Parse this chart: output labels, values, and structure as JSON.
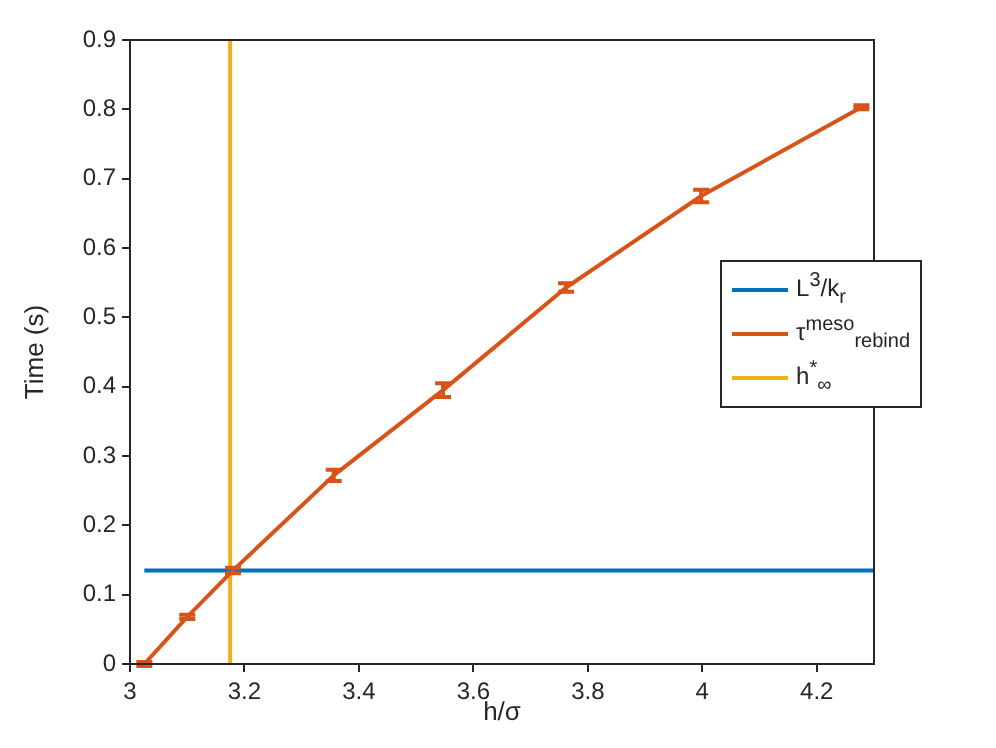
{
  "chart_data": {
    "type": "line",
    "xlabel": "h/σ",
    "ylabel": "Time (s)",
    "xlim": [
      3,
      4.3
    ],
    "xticks": [
      3,
      3.2,
      3.4,
      3.6,
      3.8,
      4,
      4.2
    ],
    "ylim": [
      0,
      0.9
    ],
    "yticks": [
      0,
      0.1,
      0.2,
      0.3,
      0.4,
      0.5,
      0.6,
      0.7,
      0.8,
      0.9
    ],
    "grid": false,
    "legend": "right",
    "marker": "none",
    "series": [
      {
        "name": "L$^{3}$/k$_{r}$",
        "color": "#0072bd",
        "x": [
          3.025,
          4.3
        ],
        "values": [
          0.135,
          0.135
        ]
      },
      {
        "name": "τ$^{meso}$$_{rebind}$",
        "color": "#d95319",
        "x": [
          3.025,
          3.1,
          3.18,
          3.356,
          3.547,
          3.762,
          3.998,
          4.278
        ],
        "values": [
          0,
          0.068,
          0.135,
          0.272,
          0.395,
          0.543,
          0.675,
          0.803
        ],
        "errors": [
          0.003,
          0.003,
          0.004,
          0.008,
          0.01,
          0.006,
          0.009,
          0.003
        ]
      },
      {
        "name": "h$^{*}$$_{∞}$",
        "color": "#edb120",
        "x": [
          3.175,
          3.175
        ],
        "values": [
          0,
          0.9
        ]
      }
    ]
  }
}
